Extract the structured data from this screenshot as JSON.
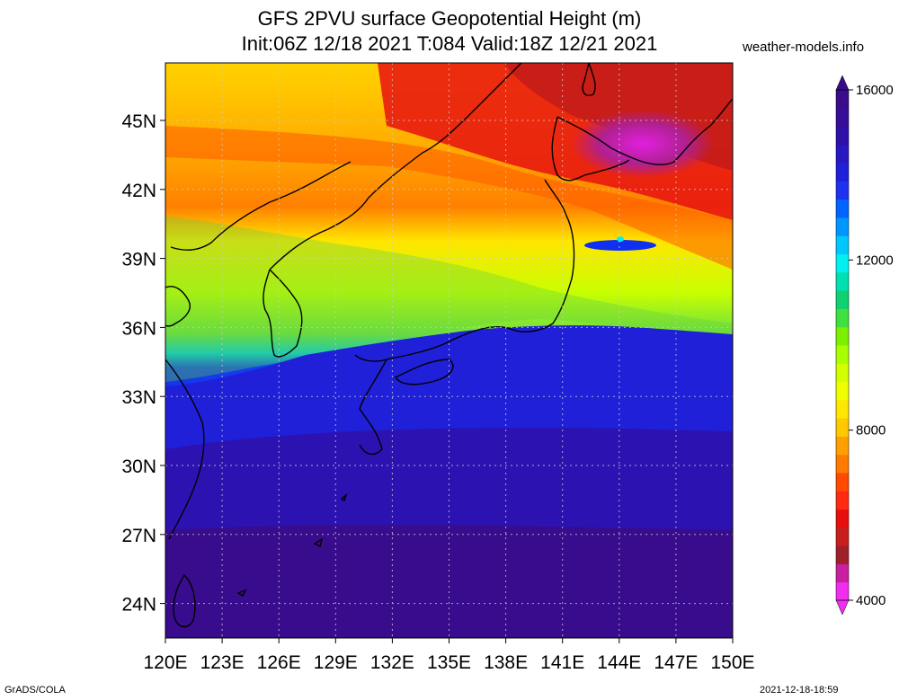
{
  "title": {
    "line1": "GFS 2PVU surface Geopotential Height (m)",
    "line2": "Init:06Z 12/18 2021 T:084 Valid:18Z 12/21 2021"
  },
  "credit": "weather-models.info",
  "footer": {
    "left": "GrADS/COLA",
    "right": "2021-12-18-18:59"
  },
  "map": {
    "lat_labels": [
      "45N",
      "42N",
      "39N",
      "36N",
      "33N",
      "30N",
      "27N",
      "24N"
    ],
    "lon_labels": [
      "120E",
      "123E",
      "126E",
      "129E",
      "132E",
      "135E",
      "138E",
      "141E",
      "144E",
      "147E",
      "150E"
    ],
    "lon_range": [
      120,
      150
    ],
    "lat_range": [
      22.5,
      47.5
    ],
    "grid": true
  },
  "colorbar": {
    "labels": [
      "16000",
      "12000",
      "8000",
      "4000"
    ],
    "values": [
      16000,
      12000,
      8000,
      4000
    ],
    "colors": [
      "#f02ef0",
      "#c820a0",
      "#a0202a",
      "#c81e1e",
      "#e80e0e",
      "#ff2a10",
      "#ff4a00",
      "#ff7a00",
      "#ffa000",
      "#ffc800",
      "#ffe600",
      "#f0ff00",
      "#d2ff00",
      "#a8ff00",
      "#7cf000",
      "#40e040",
      "#10d070",
      "#00e0b0",
      "#00f0f0",
      "#00c8ff",
      "#0096ff",
      "#0064ff",
      "#1e32f0",
      "#2020d8",
      "#2818c0",
      "#3010a8",
      "#360e98",
      "#3a0c8a"
    ]
  }
}
